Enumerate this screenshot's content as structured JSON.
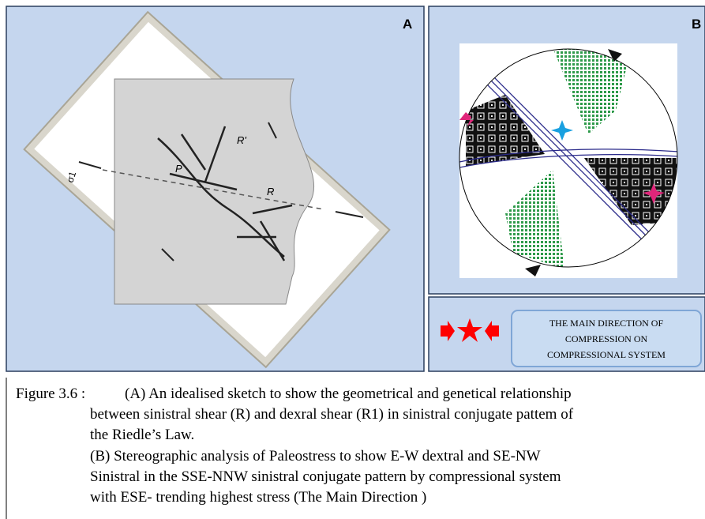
{
  "panel_a": {
    "label": "A",
    "sketch_labels": {
      "p": "P",
      "r_prime": "R'",
      "r": "R",
      "sigma": "σ1"
    }
  },
  "panel_b": {
    "label": "B"
  },
  "legend": {
    "lines": [
      "THE MAIN DIRECTION OF",
      "COMPRESSION  ON",
      "COMPRESSIONAL SYSTEM"
    ]
  },
  "caption": {
    "label": "Figure  3.6 :",
    "lines": [
      "(A) An idealised sketch to show the geometrical and genetical relationship",
      "between sinistral shear (R) and dexral shear (R1) in sinistral conjugate pattem of",
      "the Riedle’s Law.",
      "(B) Stereographic analysis of Paleostress to show E-W dextral and SE-NW",
      "Sinistral  in the SSE-NNW sinistral conjugate pattern  by compressional system",
      "with ESE-  trending highest stress (The Main Direction )"
    ]
  }
}
